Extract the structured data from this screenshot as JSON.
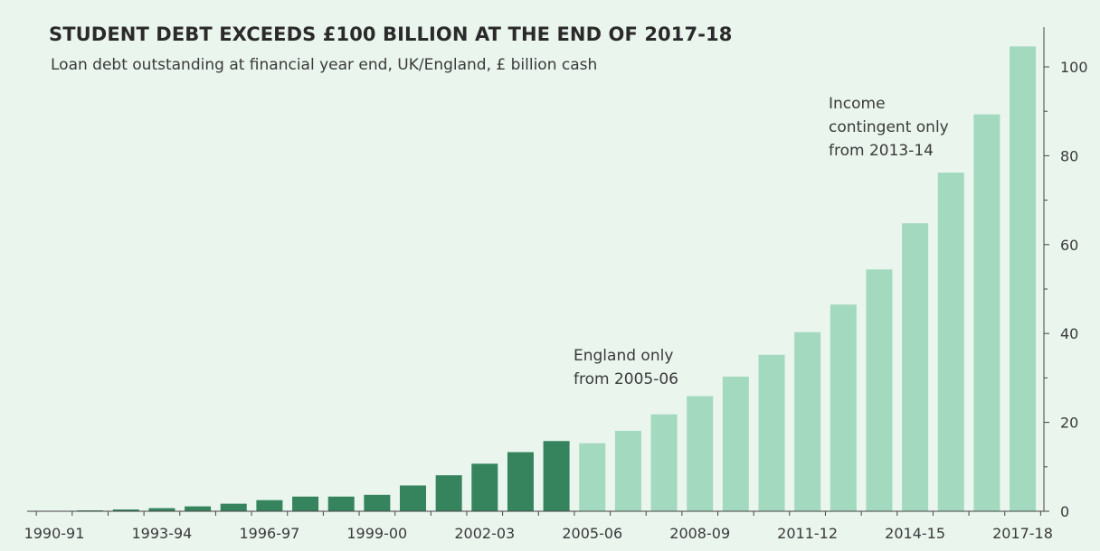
{
  "colors": {
    "background": "#eaf5ee",
    "bar_uk": "#35845e",
    "bar_england": "#a3d9be",
    "axis": "#444444"
  },
  "chart_data": {
    "type": "bar",
    "title": "STUDENT DEBT EXCEEDS £100 BILLION AT THE END OF 2017-18",
    "subtitle": "Loan debt outstanding at financial year end, UK/England, £ billion cash",
    "categories": [
      "1990-91",
      "1991-92",
      "1992-93",
      "1993-94",
      "1994-95",
      "1995-96",
      "1996-97",
      "1997-98",
      "1998-99",
      "1999-00",
      "2000-01",
      "2001-02",
      "2002-03",
      "2003-04",
      "2004-05",
      "2005-06",
      "2006-07",
      "2007-08",
      "2008-09",
      "2009-10",
      "2010-11",
      "2011-12",
      "2012-13",
      "2013-14",
      "2014-15",
      "2015-16",
      "2016-17",
      "2017-18"
    ],
    "tick_labels": [
      "1990-91",
      "1993-94",
      "1996-97",
      "1999-00",
      "2002-03",
      "2005-06",
      "2008-09",
      "2011-12",
      "2014-15",
      "2017-18"
    ],
    "series": [
      {
        "values": [
          0.07,
          0.2,
          0.4,
          0.7,
          1.1,
          1.7,
          2.5,
          3.3,
          3.3,
          3.7,
          5.8,
          8.1,
          10.7,
          13.3,
          15.8,
          null,
          null,
          null,
          null,
          null,
          null,
          null,
          null,
          null,
          null,
          null,
          null,
          null
        ]
      },
      {
        "values": [
          null,
          null,
          null,
          null,
          null,
          null,
          null,
          null,
          null,
          null,
          null,
          null,
          null,
          null,
          null,
          15.3,
          18.1,
          21.8,
          25.9,
          30.3,
          35.2,
          40.3,
          46.5,
          54.4,
          64.8,
          76.2,
          89.3,
          104.6
        ]
      }
    ],
    "yticks": [
      0,
      20,
      40,
      60,
      80,
      100
    ],
    "ylim": [
      0,
      110
    ],
    "y_axis_side": "right",
    "grid": false,
    "annotations": [
      {
        "text_lines": [
          "England only",
          "from 2005-06"
        ]
      },
      {
        "text_lines": [
          "Income",
          "contingent only",
          "from 2013-14"
        ]
      }
    ]
  }
}
